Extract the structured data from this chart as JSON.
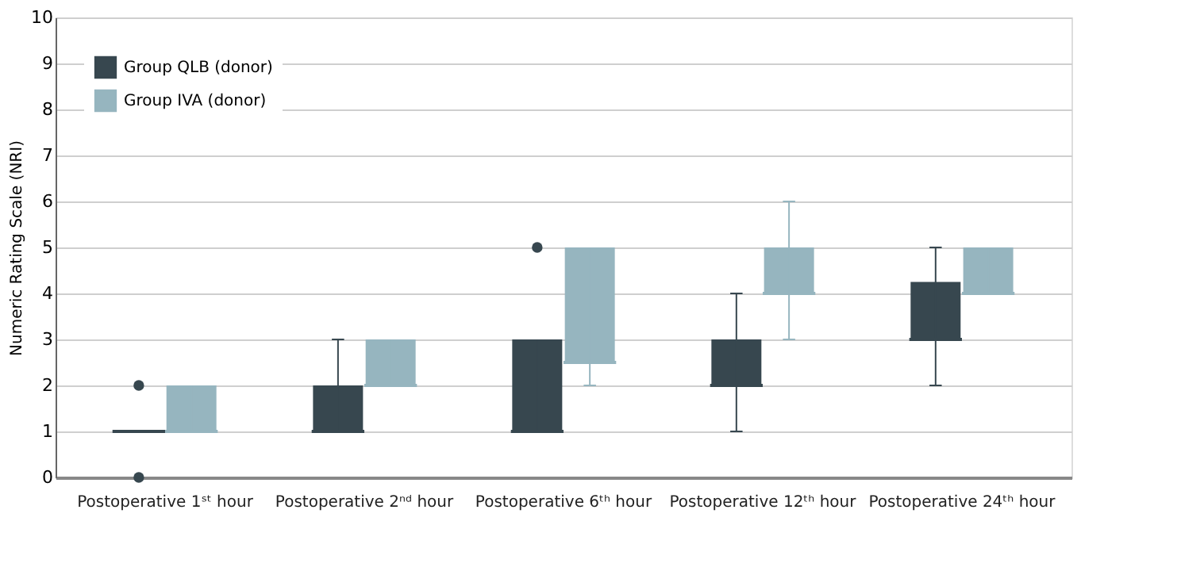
{
  "chart_data": {
    "type": "box",
    "ylabel": "Numeric Rating Scale (NRI)",
    "categories": [
      "Postoperative 1ˢᵗ hour",
      "Postoperative 2ⁿᵈ hour",
      "Postoperative 6ᵗʰ hour",
      "Postoperative 12ᵗʰ hour",
      "Postoperative 24ᵗʰ hour"
    ],
    "ylim": [
      0,
      10
    ],
    "yticks": [
      0,
      1,
      2,
      3,
      4,
      5,
      6,
      7,
      8,
      9,
      10
    ],
    "grid": "y",
    "legend": "top left",
    "series": [
      {
        "name": "Group QLB (donor)",
        "color": "#37474f",
        "boxes": [
          {
            "low": 1,
            "q1": 1,
            "median": 1,
            "q3": 1,
            "high": 1,
            "outliers": [
              2,
              0
            ]
          },
          {
            "low": 1,
            "q1": 1,
            "median": 1,
            "q3": 2,
            "high": 3
          },
          {
            "low": 1,
            "q1": 1,
            "median": 1,
            "q3": 3,
            "high": 3,
            "outliers": [
              5
            ]
          },
          {
            "low": 1,
            "q1": 2,
            "median": 2,
            "q3": 3,
            "high": 4
          },
          {
            "low": 2,
            "q1": 3,
            "median": 3,
            "q3": 4.25,
            "high": 5
          }
        ]
      },
      {
        "name": "Group IVA (donor)",
        "color": "#96b5bf",
        "boxes": [
          {
            "low": 1,
            "q1": 1,
            "median": 1,
            "q3": 2,
            "high": 2
          },
          {
            "low": 2,
            "q1": 2,
            "median": 2,
            "q3": 3,
            "high": 3
          },
          {
            "low": 2,
            "q1": 2.5,
            "median": 2.5,
            "q3": 5,
            "high": 5
          },
          {
            "low": 3,
            "q1": 4,
            "median": 4,
            "q3": 5,
            "high": 6
          },
          {
            "low": 4,
            "q1": 4,
            "median": 4,
            "q3": 5,
            "high": 5
          }
        ]
      }
    ]
  }
}
